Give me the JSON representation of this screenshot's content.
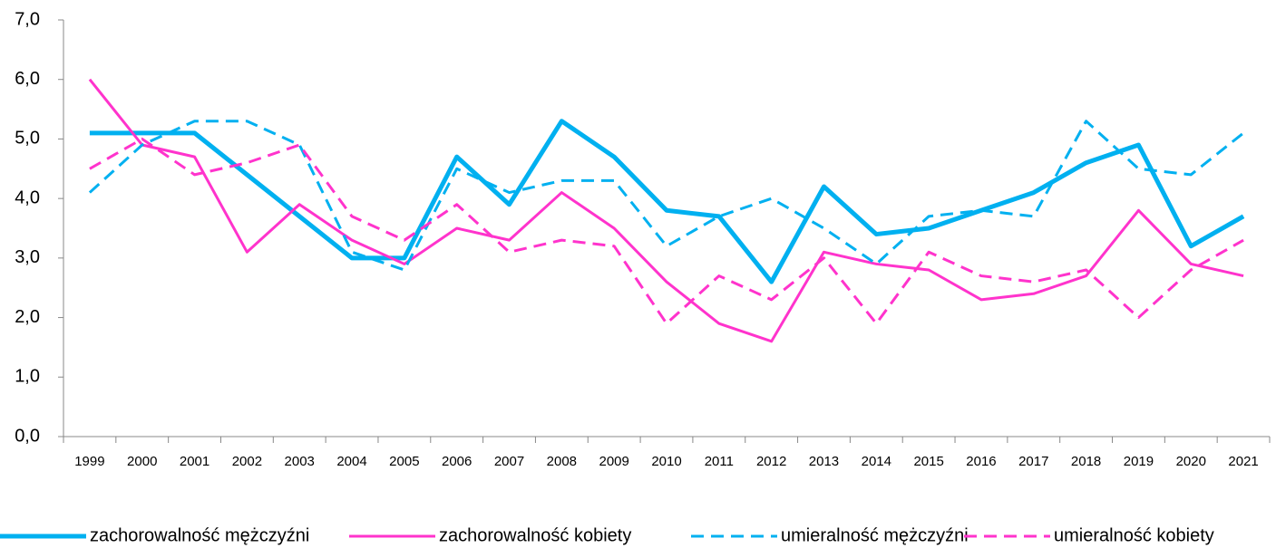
{
  "chart_data": {
    "type": "line",
    "categories": [
      "1999",
      "2000",
      "2001",
      "2002",
      "2003",
      "2004",
      "2005",
      "2006",
      "2007",
      "2008",
      "2009",
      "2010",
      "2011",
      "2012",
      "2013",
      "2014",
      "2015",
      "2016",
      "2017",
      "2018",
      "2019",
      "2020",
      "2021"
    ],
    "series": [
      {
        "name": "zachorowalność mężczyźni",
        "color": "#00b0f0",
        "style": "solid",
        "values": [
          5.1,
          5.1,
          5.1,
          4.4,
          3.7,
          3.0,
          3.0,
          4.7,
          3.9,
          5.3,
          4.7,
          3.8,
          3.7,
          2.6,
          4.2,
          3.4,
          3.5,
          3.8,
          4.1,
          4.6,
          4.9,
          3.2,
          3.7
        ]
      },
      {
        "name": "zachorowalność kobiety",
        "color": "#ff33cc",
        "style": "solid",
        "values": [
          6.0,
          4.9,
          4.7,
          3.1,
          3.9,
          3.3,
          2.9,
          3.5,
          3.3,
          4.1,
          3.5,
          2.6,
          1.9,
          1.6,
          3.1,
          2.9,
          2.8,
          2.3,
          2.4,
          2.7,
          3.8,
          2.9,
          2.7
        ]
      },
      {
        "name": "umieralność mężczyźni",
        "color": "#00b0f0",
        "style": "dashed",
        "values": [
          4.1,
          4.9,
          5.3,
          5.3,
          4.9,
          3.1,
          2.8,
          4.5,
          4.1,
          4.3,
          4.3,
          3.2,
          3.7,
          4.0,
          3.5,
          2.9,
          3.7,
          3.8,
          3.7,
          5.3,
          4.5,
          4.4,
          5.1
        ]
      },
      {
        "name": "umieralność kobiety",
        "color": "#ff33cc",
        "style": "dashed",
        "values": [
          4.5,
          5.0,
          4.4,
          4.6,
          4.9,
          3.7,
          3.3,
          3.9,
          3.1,
          3.3,
          3.2,
          1.9,
          2.7,
          2.3,
          3.0,
          1.9,
          3.1,
          2.7,
          2.6,
          2.8,
          2.0,
          2.8,
          3.3
        ]
      }
    ],
    "ylim": [
      0,
      7
    ],
    "yticks": [
      {
        "value": 0,
        "label": "0,0"
      },
      {
        "value": 1,
        "label": "1,0"
      },
      {
        "value": 2,
        "label": "2,0"
      },
      {
        "value": 3,
        "label": "3,0"
      },
      {
        "value": 4,
        "label": "4,0"
      },
      {
        "value": 5,
        "label": "5,0"
      },
      {
        "value": 6,
        "label": "6,0"
      },
      {
        "value": 7,
        "label": "7,0"
      }
    ],
    "legend": "bottom"
  }
}
